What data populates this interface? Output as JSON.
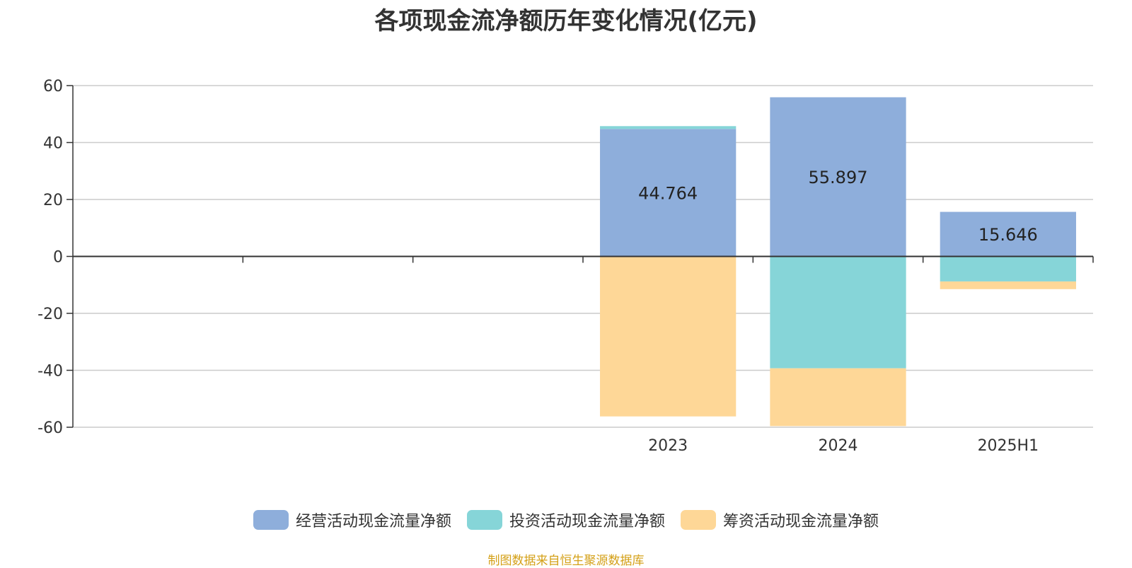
{
  "chart_data": {
    "type": "bar",
    "stacked": true,
    "title": "各项现金流净额历年变化情况(亿元)",
    "categories": [
      "",
      "",
      "",
      "2023",
      "2024",
      "2025H1"
    ],
    "ylim": [
      -60,
      60
    ],
    "yticks": [
      60,
      40,
      20,
      0,
      -20,
      -40,
      -60
    ],
    "grid": true,
    "legend_position": "bottom",
    "series": [
      {
        "name": "经营活动现金流量净额",
        "color": "#8eaedb",
        "values": [
          null,
          null,
          null,
          44.764,
          55.897,
          15.646
        ],
        "labels": [
          "",
          "",
          "",
          "44.764",
          "55.897",
          "15.646"
        ]
      },
      {
        "name": "投资活动现金流量净额",
        "color": "#86d5d8",
        "values": [
          null,
          null,
          null,
          1.0,
          -39.3,
          -8.8
        ],
        "labels": [
          "",
          "",
          "",
          "",
          "",
          ""
        ]
      },
      {
        "name": "筹资活动现金流量净额",
        "color": "#fed797",
        "values": [
          null,
          null,
          null,
          -56.2,
          -20.3,
          -2.7
        ],
        "labels": [
          "",
          "",
          "",
          "",
          "",
          ""
        ]
      }
    ]
  },
  "footer": {
    "source": "制图数据来自恒生聚源数据库"
  }
}
